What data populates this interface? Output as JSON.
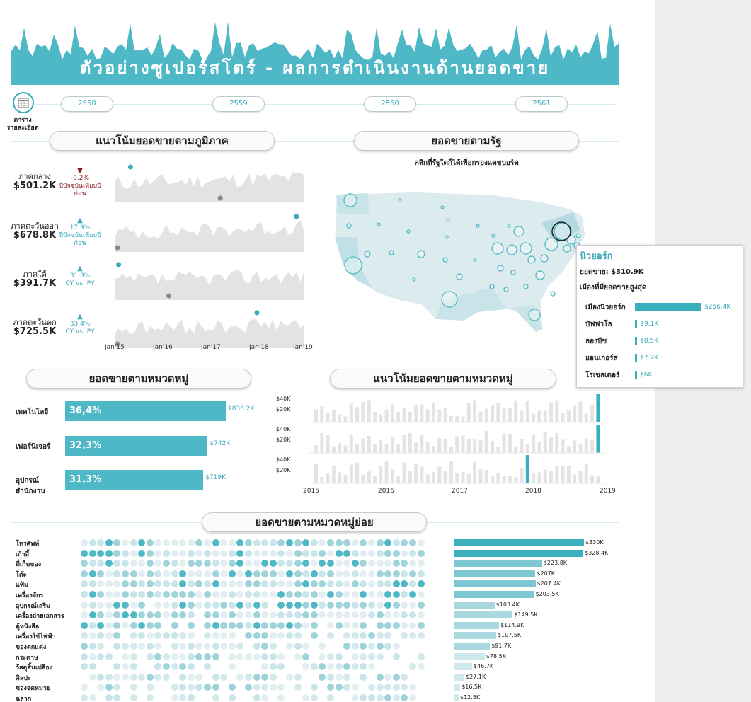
{
  "header": {
    "title": "ตัวอย่างซูเปอร์สโตร์ - ผลการดำเนินงานด้านยอดขาย",
    "years": [
      "2558",
      "2559",
      "2560",
      "2561"
    ],
    "detail_label_line1": "ตาราง",
    "detail_label_line2": "รายละเอียด"
  },
  "colors": {
    "accent": "#4fb8c6",
    "accent_dark": "#3aa9b8",
    "negative": "#8b1a1a",
    "gray_area": "#e3e3e3"
  },
  "regions": {
    "title": "แนวโน้มยอดขายตามภูมิภาค",
    "x_ticks": [
      "Jan'15",
      "Jan'16",
      "Jan'17",
      "Jan'18",
      "Jan'19"
    ],
    "items": [
      {
        "name": "ภาคกลาง",
        "value": "$501.2K",
        "direction": "down",
        "delta": "-0.2%",
        "note": "ปีปัจจุบันเทียบปีก่อน"
      },
      {
        "name": "ภาคตะวันออก",
        "value": "$678.8K",
        "direction": "up",
        "delta": "17.9%",
        "note": "ปีปัจจุบันเทียบปีก่อน"
      },
      {
        "name": "ภาคใต้",
        "value": "$391.7K",
        "direction": "up",
        "delta": "31.3%",
        "note": "CY vs. PY"
      },
      {
        "name": "ภาคตะวันตก",
        "value": "$725.5K",
        "direction": "up",
        "delta": "33.4%",
        "note": "CY vs. PY"
      }
    ]
  },
  "states": {
    "title": "ยอดขายตามรัฐ",
    "subtitle": "คลิกที่รัฐใดก็ได้เพื่อกรองแดชบอร์ด",
    "tooltip": {
      "state": "นิวยอร์ก",
      "sales_label": "ยอดขาย:",
      "sales_value": "$310.9K",
      "top_cities_label": "เมืองที่มียอดขายสูงสุด",
      "cities": [
        {
          "name": "เมืองนิวยอร์ก",
          "value": "$256.4K",
          "amount": 256.4
        },
        {
          "name": "บัฟฟาโล",
          "value": "$9.1K",
          "amount": 9.1
        },
        {
          "name": "ลองบีช",
          "value": "$8.5K",
          "amount": 8.5
        },
        {
          "name": "ยอนเกอร์ส",
          "value": "$7.7K",
          "amount": 7.7
        },
        {
          "name": "โรเชสเตอร์",
          "value": "$6K",
          "amount": 6
        }
      ]
    }
  },
  "categories": {
    "title": "ยอดขายตามหมวดหมู่",
    "items": [
      {
        "name": "เทคโนโลยี",
        "percent": "36,4%",
        "value": "$836.2K",
        "amount": 836.2
      },
      {
        "name": "เฟอร์นิเจอร์",
        "percent": "32,3%",
        "value": "$742K",
        "amount": 742
      },
      {
        "name": "อุปกรณ์สำนักงาน",
        "percent": "31,3%",
        "value": "$719K",
        "amount": 719
      }
    ]
  },
  "category_trend": {
    "title": "แนวโน้มยอดขายตามหมวดหมู่",
    "y_ticks": [
      "$40K",
      "$20K"
    ],
    "x_ticks": [
      "2015",
      "2016",
      "2017",
      "2018",
      "2019"
    ]
  },
  "subcategories": {
    "title": "ยอดขายตามหมวดหมู่ย่อย",
    "items": [
      {
        "name": "โทรศัพท์",
        "value": "$330K",
        "amount": 330
      },
      {
        "name": "เก้าอี้",
        "value": "$328.4K",
        "amount": 328.4
      },
      {
        "name": "ที่เก็บของ",
        "value": "$223.8K",
        "amount": 223.8
      },
      {
        "name": "โต๊ะ",
        "value": "$207K",
        "amount": 207
      },
      {
        "name": "แฟ้ม",
        "value": "$207.4K",
        "amount": 207.4
      },
      {
        "name": "เครื่องจักร",
        "value": "$203.5K",
        "amount": 203.5
      },
      {
        "name": "อุปกรณ์เสริม",
        "value": "$103.4K",
        "amount": 103.4
      },
      {
        "name": "เครื่องถ่ายเอกสาร",
        "value": "$149.5K",
        "amount": 149.5
      },
      {
        "name": "ตู้หนังสือ",
        "value": "$114.9K",
        "amount": 114.9
      },
      {
        "name": "เครื่องใช้ไฟฟ้า",
        "value": "$107.5K",
        "amount": 107.5
      },
      {
        "name": "ของตกแต่ง",
        "value": "$91.7K",
        "amount": 91.7
      },
      {
        "name": "กระดาษ",
        "value": "$78.5K",
        "amount": 78.5
      },
      {
        "name": "วัสดุสิ้นเปลือง",
        "value": "$46.7K",
        "amount": 46.7
      },
      {
        "name": "ศิลปะ",
        "value": "$27.1K",
        "amount": 27.1
      },
      {
        "name": "ซองจดหมาย",
        "value": "$16.5K",
        "amount": 16.5
      },
      {
        "name": "ฉลาก",
        "value": "$12.5K",
        "amount": 12.5
      }
    ]
  }
}
